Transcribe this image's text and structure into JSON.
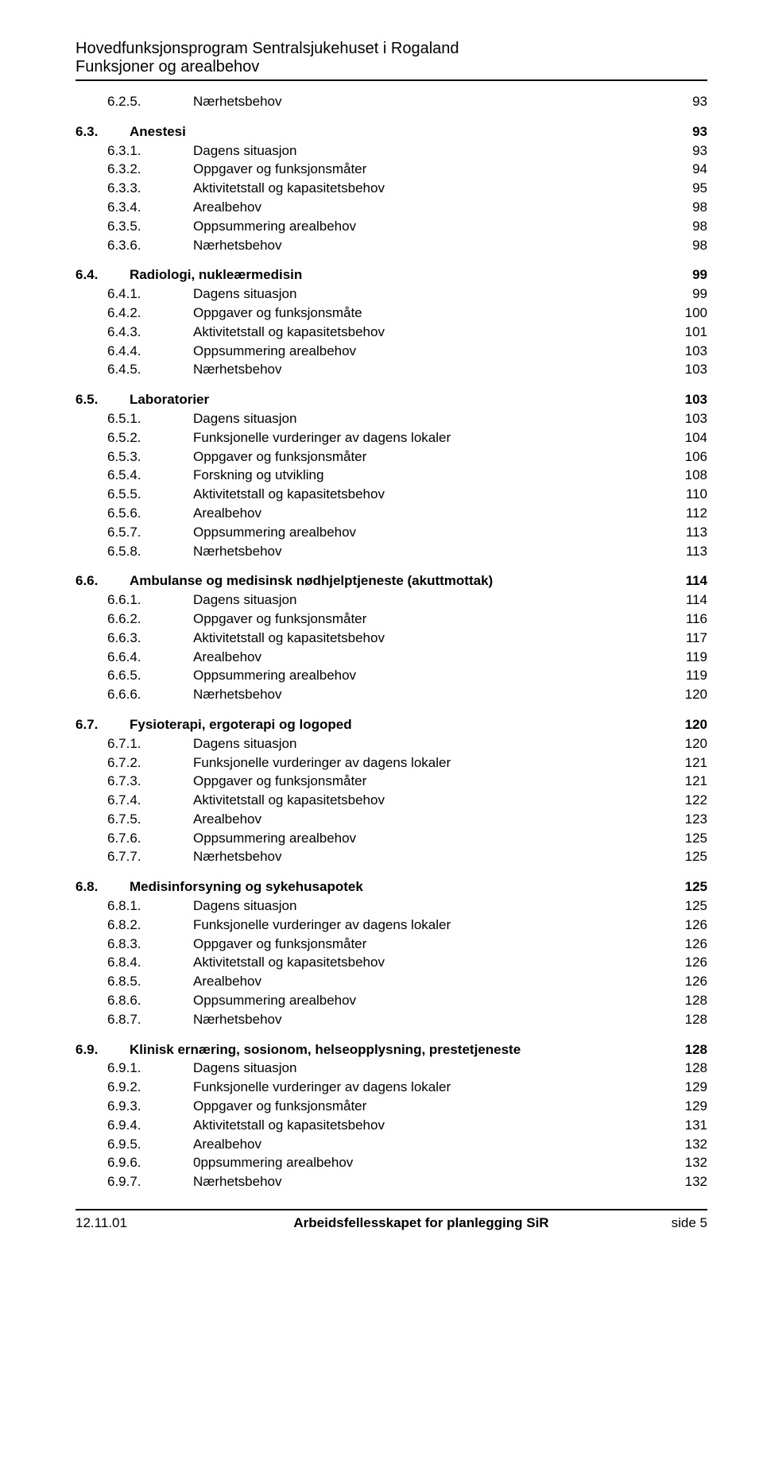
{
  "header": {
    "line1": "Hovedfunksjonsprogram Sentralsjukehuset i Rogaland",
    "line2": "Funksjoner og arealbehov"
  },
  "sections": [
    {
      "head": null,
      "entries": [
        {
          "num": "6.2.5.",
          "title": "Nærhetsbehov",
          "page": "93",
          "indent": 1
        }
      ]
    },
    {
      "head": {
        "num": "6.3.",
        "title": "Anestesi",
        "page": "93",
        "indent": 0,
        "bold": true
      },
      "entries": [
        {
          "num": "6.3.1.",
          "title": "Dagens situasjon",
          "page": "93",
          "indent": 1
        },
        {
          "num": "6.3.2.",
          "title": "Oppgaver og funksjonsmåter",
          "page": "94",
          "indent": 1
        },
        {
          "num": "6.3.3.",
          "title": "Aktivitetstall og kapasitetsbehov",
          "page": "95",
          "indent": 1
        },
        {
          "num": "6.3.4.",
          "title": "Arealbehov",
          "page": "98",
          "indent": 1
        },
        {
          "num": "6.3.5.",
          "title": "Oppsummering arealbehov",
          "page": "98",
          "indent": 1
        },
        {
          "num": "6.3.6.",
          "title": "Nærhetsbehov",
          "page": "98",
          "indent": 1
        }
      ]
    },
    {
      "head": {
        "num": "6.4.",
        "title": "Radiologi, nukleærmedisin",
        "page": "99",
        "indent": 0,
        "bold": true
      },
      "entries": [
        {
          "num": "6.4.1.",
          "title": "Dagens situasjon",
          "page": "99",
          "indent": 1
        },
        {
          "num": "6.4.2.",
          "title": "Oppgaver og funksjonsmåte",
          "page": "100",
          "indent": 1
        },
        {
          "num": "6.4.3.",
          "title": "Aktivitetstall og kapasitetsbehov",
          "page": "101",
          "indent": 1
        },
        {
          "num": "6.4.4.",
          "title": "Oppsummering arealbehov",
          "page": "103",
          "indent": 1
        },
        {
          "num": "6.4.5.",
          "title": "Nærhetsbehov",
          "page": "103",
          "indent": 1
        }
      ]
    },
    {
      "head": {
        "num": "6.5.",
        "title": "Laboratorier",
        "page": "103",
        "indent": 0,
        "bold": true
      },
      "entries": [
        {
          "num": "6.5.1.",
          "title": "Dagens situasjon",
          "page": "103",
          "indent": 1
        },
        {
          "num": "6.5.2.",
          "title": "Funksjonelle vurderinger av dagens lokaler",
          "page": "104",
          "indent": 1
        },
        {
          "num": "6.5.3.",
          "title": "Oppgaver og funksjonsmåter",
          "page": "106",
          "indent": 1
        },
        {
          "num": "6.5.4.",
          "title": "Forskning og utvikling",
          "page": "108",
          "indent": 1
        },
        {
          "num": "6.5.5.",
          "title": "Aktivitetstall og kapasitetsbehov",
          "page": "110",
          "indent": 1
        },
        {
          "num": "6.5.6.",
          "title": "Arealbehov",
          "page": "112",
          "indent": 1
        },
        {
          "num": "6.5.7.",
          "title": "Oppsummering arealbehov",
          "page": "113",
          "indent": 1
        },
        {
          "num": "6.5.8.",
          "title": "Nærhetsbehov",
          "page": "113",
          "indent": 1
        }
      ]
    },
    {
      "head": {
        "num": "6.6.",
        "title": "Ambulanse og medisinsk nødhjelptjeneste (akuttmottak)",
        "page": "114",
        "indent": 0,
        "bold": true
      },
      "entries": [
        {
          "num": "6.6.1.",
          "title": "Dagens situasjon",
          "page": "114",
          "indent": 1
        },
        {
          "num": "6.6.2.",
          "title": "Oppgaver og funksjonsmåter",
          "page": "116",
          "indent": 1
        },
        {
          "num": "6.6.3.",
          "title": "Aktivitetstall og kapasitetsbehov",
          "page": "117",
          "indent": 1
        },
        {
          "num": "6.6.4.",
          "title": "Arealbehov",
          "page": "119",
          "indent": 1
        },
        {
          "num": "6.6.5.",
          "title": "Oppsummering arealbehov",
          "page": "119",
          "indent": 1
        },
        {
          "num": "6.6.6.",
          "title": "Nærhetsbehov",
          "page": "120",
          "indent": 1
        }
      ]
    },
    {
      "head": {
        "num": "6.7.",
        "title": "Fysioterapi, ergoterapi og logoped",
        "page": "120",
        "indent": 0,
        "bold": true
      },
      "entries": [
        {
          "num": "6.7.1.",
          "title": "Dagens situasjon",
          "page": "120",
          "indent": 1
        },
        {
          "num": "6.7.2.",
          "title": "Funksjonelle vurderinger av dagens lokaler",
          "page": "121",
          "indent": 1
        },
        {
          "num": "6.7.3.",
          "title": "Oppgaver og funksjonsmåter",
          "page": "121",
          "indent": 1
        },
        {
          "num": "6.7.4.",
          "title": "Aktivitetstall og kapasitetsbehov",
          "page": "122",
          "indent": 1
        },
        {
          "num": "6.7.5.",
          "title": "Arealbehov",
          "page": "123",
          "indent": 1
        },
        {
          "num": "6.7.6.",
          "title": "Oppsummering arealbehov",
          "page": "125",
          "indent": 1
        },
        {
          "num": "6.7.7.",
          "title": "Nærhetsbehov",
          "page": "125",
          "indent": 1
        }
      ]
    },
    {
      "head": {
        "num": "6.8.",
        "title": "Medisinforsyning og sykehusapotek",
        "page": "125",
        "indent": 0,
        "bold": true
      },
      "entries": [
        {
          "num": "6.8.1.",
          "title": "Dagens situasjon",
          "page": "125",
          "indent": 1
        },
        {
          "num": "6.8.2.",
          "title": "Funksjonelle vurderinger av dagens lokaler",
          "page": "126",
          "indent": 1
        },
        {
          "num": "6.8.3.",
          "title": "Oppgaver og funksjonsmåter",
          "page": "126",
          "indent": 1
        },
        {
          "num": "6.8.4.",
          "title": "Aktivitetstall og kapasitetsbehov",
          "page": "126",
          "indent": 1
        },
        {
          "num": "6.8.5.",
          "title": "Arealbehov",
          "page": "126",
          "indent": 1
        },
        {
          "num": "6.8.6.",
          "title": "Oppsummering arealbehov",
          "page": "128",
          "indent": 1
        },
        {
          "num": "6.8.7.",
          "title": "Nærhetsbehov",
          "page": "128",
          "indent": 1
        }
      ]
    },
    {
      "head": {
        "num": "6.9.",
        "title": "Klinisk ernæring, sosionom, helseopplysning, prestetjeneste",
        "page": "128",
        "indent": 0,
        "bold": true
      },
      "entries": [
        {
          "num": "6.9.1.",
          "title": "Dagens situasjon",
          "page": "128",
          "indent": 1
        },
        {
          "num": "6.9.2.",
          "title": "Funksjonelle vurderinger av dagens lokaler",
          "page": "129",
          "indent": 1
        },
        {
          "num": "6.9.3.",
          "title": "Oppgaver og funksjonsmåter",
          "page": "129",
          "indent": 1
        },
        {
          "num": "6.9.4.",
          "title": "Aktivitetstall og kapasitetsbehov",
          "page": "131",
          "indent": 1
        },
        {
          "num": "6.9.5.",
          "title": "Arealbehov",
          "page": "132",
          "indent": 1
        },
        {
          "num": "6.9.6.",
          "title": "0ppsummering arealbehov",
          "page": "132",
          "indent": 1
        },
        {
          "num": "6.9.7.",
          "title": "Nærhetsbehov",
          "page": "132",
          "indent": 1
        }
      ]
    }
  ],
  "footer": {
    "date": "12.11.01",
    "center": "Arbeidsfellesskapet for planlegging SiR",
    "right": "side 5"
  }
}
